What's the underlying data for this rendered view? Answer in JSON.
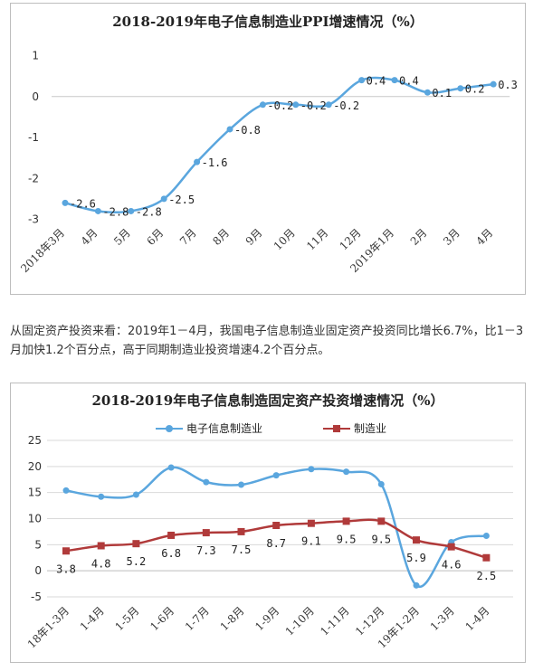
{
  "paragraph": "从固定资产投资来看：2019年1－4月，我国电子信息制造业固定资产投资同比增长6.7%，比1－3月加快1.2个百分点，高于同期制造业投资增速4.2个百分点。",
  "colors": {
    "blue": "#5aa6de",
    "red": "#b03a3a",
    "grid": "#d9d9d9",
    "axis": "#888888"
  },
  "chart_data": [
    {
      "type": "line",
      "title": "2018-2019年电子信息制造业PPI增速情况（%）",
      "categories": [
        "2018年3月",
        "4月",
        "5月",
        "6月",
        "7月",
        "8月",
        "9月",
        "10月",
        "11月",
        "12月",
        "2019年1月",
        "2月",
        "3月",
        "4月"
      ],
      "series": [
        {
          "values": [
            -2.6,
            -2.8,
            -2.8,
            -2.5,
            -1.6,
            -0.8,
            -0.2,
            -0.2,
            -0.2,
            0.4,
            0.4,
            0.1,
            0.2,
            0.3
          ],
          "labels": [
            "-2.6",
            "-2.8",
            "-2.8",
            "-2.5",
            "-1.6",
            "-0.8",
            "-0.2",
            "-0.2",
            "-0.2",
            "0.4",
            "0.4",
            "0.1",
            "0.2",
            "0.3"
          ]
        }
      ],
      "ylim": [
        -3,
        1
      ],
      "yticks": [
        -3,
        -2,
        -1,
        0,
        1
      ],
      "grid": false,
      "legend": "none"
    },
    {
      "type": "line",
      "title": "2018-2019年电子信息制造固定资产投资增速情况（%）",
      "categories": [
        "18年1-3月",
        "1-4月",
        "1-5月",
        "1-6月",
        "1-7月",
        "1-8月",
        "1-9月",
        "1-10月",
        "1-11月",
        "1-12月",
        "19年1-2月",
        "1-3月",
        "1-4月"
      ],
      "series": [
        {
          "name": "电子信息制造业",
          "values": [
            15.4,
            14.2,
            14.6,
            19.8,
            17.0,
            16.5,
            18.3,
            19.5,
            19.0,
            16.6,
            -2.8,
            5.5,
            6.7
          ]
        },
        {
          "name": "制造业",
          "values": [
            3.8,
            4.8,
            5.2,
            6.8,
            7.3,
            7.5,
            8.7,
            9.1,
            9.5,
            9.5,
            5.9,
            4.6,
            2.5
          ],
          "labels": [
            "3.8",
            "4.8",
            "5.2",
            "6.8",
            "7.3",
            "7.5",
            "8.7",
            "9.1",
            "9.5",
            "9.5",
            "5.9",
            "4.6",
            "2.5"
          ]
        }
      ],
      "ylim": [
        -5,
        25
      ],
      "yticks": [
        -5,
        0,
        5,
        10,
        15,
        20,
        25
      ],
      "grid": true,
      "legend": "top"
    }
  ]
}
